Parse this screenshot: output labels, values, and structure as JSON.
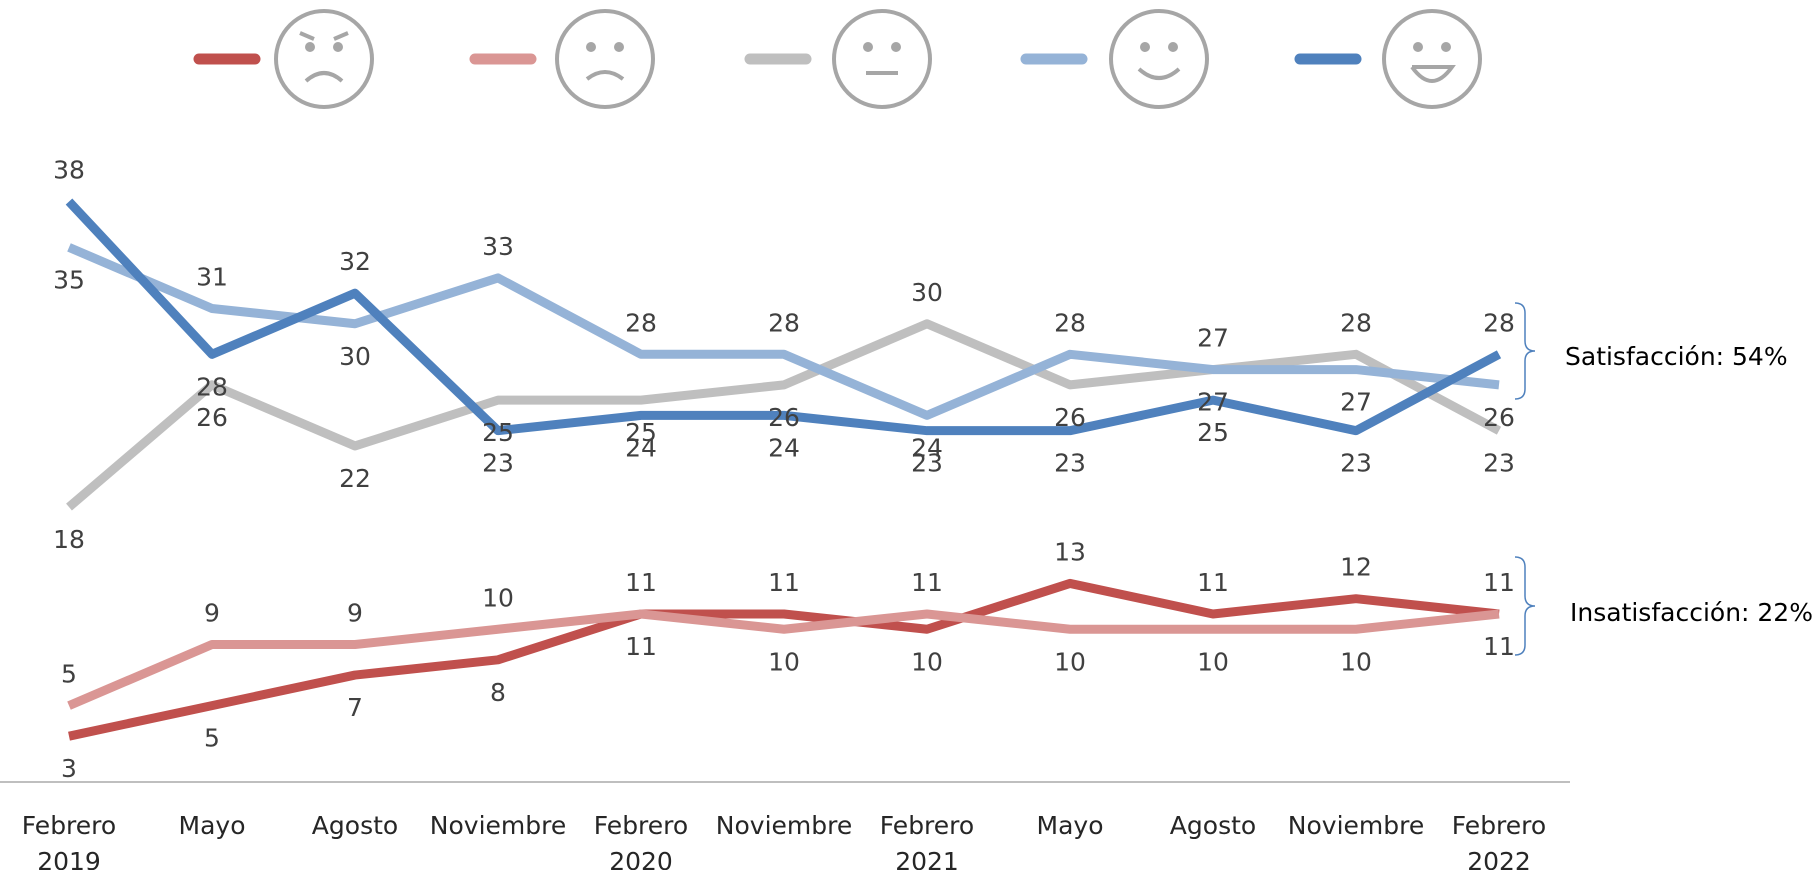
{
  "chart_data": {
    "type": "line",
    "categories": [
      "Febrero 2019",
      "Mayo",
      "Agosto",
      "Noviembre",
      "Febrero 2020",
      "Noviembre",
      "Febrero 2021",
      "Mayo",
      "Agosto",
      "Noviembre",
      "Febrero 2022"
    ],
    "series": [
      {
        "color": "#c0504d",
        "values": [
          3,
          5,
          7,
          8,
          11,
          11,
          10,
          13,
          11,
          12,
          11
        ]
      },
      {
        "color": "#da9694",
        "values": [
          5,
          9,
          9,
          10,
          11,
          10,
          11,
          10,
          10,
          10,
          11
        ]
      },
      {
        "color": "#bfbfbf",
        "values": [
          18,
          26,
          22,
          25,
          25,
          26,
          30,
          26,
          27,
          28,
          23
        ]
      },
      {
        "color": "#95b3d7",
        "values": [
          35,
          31,
          30,
          33,
          28,
          28,
          24,
          28,
          27,
          27,
          26
        ]
      },
      {
        "color": "#4f81bd",
        "values": [
          38,
          28,
          32,
          23,
          24,
          24,
          23,
          23,
          25,
          23,
          28
        ]
      }
    ],
    "ylim": [
      0,
      40
    ],
    "annotations": [
      "Satisfacción: 54%",
      "Insatisfacción: 22%"
    ]
  }
}
